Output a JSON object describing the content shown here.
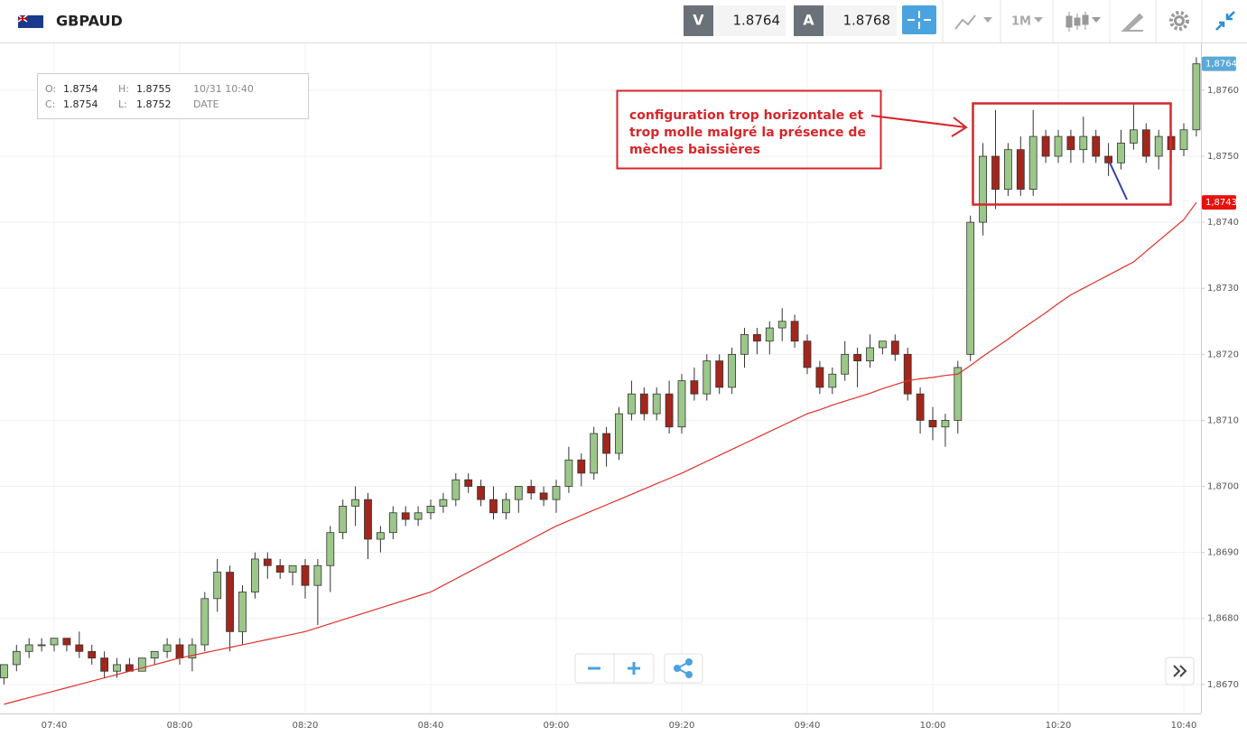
{
  "header": {
    "symbol": "GBPAUD",
    "sell_label": "V",
    "sell_price": "1.8764",
    "buy_label": "A",
    "buy_price": "1.8768",
    "timeframe": "1M"
  },
  "info_box": {
    "rows": [
      [
        "O:",
        "1.8754",
        "H:",
        "1.8755",
        "10/31 10:40"
      ],
      [
        "C:",
        "1.8754",
        "L:",
        "1.8752",
        "DATE"
      ]
    ]
  },
  "chart_data": {
    "type": "candlestick",
    "annotation": [
      "configuration trop horizontale et",
      "trop molle malgré la présence de",
      "mèches baissières"
    ],
    "categories": [
      null,
      null,
      null,
      null,
      "07:40",
      null,
      null,
      null,
      null,
      null,
      null,
      null,
      null,
      null,
      "08:00",
      null,
      null,
      null,
      null,
      null,
      null,
      null,
      null,
      null,
      "08:20",
      null,
      null,
      null,
      null,
      null,
      null,
      null,
      null,
      null,
      "08:40",
      null,
      null,
      null,
      null,
      null,
      null,
      null,
      null,
      null,
      "09:00",
      null,
      null,
      null,
      null,
      null,
      null,
      null,
      null,
      null,
      "09:20",
      null,
      null,
      null,
      null,
      null,
      null,
      null,
      null,
      null,
      "09:40",
      null,
      null,
      null,
      null,
      null,
      null,
      null,
      null,
      null,
      "10:00",
      null,
      null,
      null,
      null,
      null,
      null,
      null,
      null,
      null,
      "10:20",
      null,
      null,
      null,
      null,
      null,
      null,
      null,
      null,
      null,
      "10:40",
      null
    ],
    "ohlc": {
      "open": [
        1.8671,
        1.8673,
        1.8675,
        1.8676,
        1.8676,
        1.8677,
        1.8676,
        1.8675,
        1.8674,
        1.8672,
        1.8673,
        1.8672,
        1.8674,
        1.8675,
        1.8676,
        1.8674,
        1.8676,
        1.8683,
        1.8687,
        1.8678,
        1.8684,
        1.8689,
        1.8688,
        1.8687,
        1.8688,
        1.8685,
        1.8688,
        1.8693,
        1.8697,
        1.8698,
        1.8692,
        1.8693,
        1.8696,
        1.8695,
        1.8696,
        1.8697,
        1.8698,
        1.8701,
        1.87,
        1.8698,
        1.8696,
        1.8698,
        1.87,
        1.8699,
        1.8698,
        1.87,
        1.8704,
        1.8702,
        1.8708,
        1.8705,
        1.8711,
        1.8714,
        1.8711,
        1.8714,
        1.8709,
        1.8716,
        1.8714,
        1.8719,
        1.8715,
        1.872,
        1.8723,
        1.8722,
        1.8724,
        1.8725,
        1.8722,
        1.8718,
        1.8715,
        1.8717,
        1.872,
        1.8719,
        1.8721,
        1.8722,
        1.872,
        1.8714,
        1.871,
        1.8709,
        1.871,
        1.872,
        1.874,
        1.875,
        1.8745,
        1.8751,
        1.8745,
        1.8753,
        1.875,
        1.8753,
        1.8751,
        1.8753,
        1.875,
        1.8749,
        1.8752,
        1.8754,
        1.875,
        1.8753,
        1.8751,
        1.8754
      ],
      "high": [
        1.8673,
        1.8676,
        1.8677,
        1.8677,
        1.8677,
        1.8677,
        1.8678,
        1.8676,
        1.8675,
        1.8674,
        1.8674,
        1.8674,
        1.8675,
        1.8677,
        1.8677,
        1.8677,
        1.8684,
        1.8689,
        1.8688,
        1.8685,
        1.869,
        1.869,
        1.8689,
        1.8688,
        1.8689,
        1.8689,
        1.8694,
        1.8698,
        1.87,
        1.8699,
        1.8694,
        1.8697,
        1.8697,
        1.8697,
        1.8698,
        1.8699,
        1.8702,
        1.8702,
        1.8701,
        1.87,
        1.8699,
        1.87,
        1.8701,
        1.87,
        1.8701,
        1.8706,
        1.8705,
        1.8709,
        1.8709,
        1.8712,
        1.8716,
        1.8715,
        1.8715,
        1.8716,
        1.8717,
        1.8718,
        1.872,
        1.872,
        1.8721,
        1.8724,
        1.8724,
        1.8725,
        1.8727,
        1.8726,
        1.8723,
        1.8719,
        1.8718,
        1.8722,
        1.8721,
        1.8723,
        1.8722,
        1.8723,
        1.8721,
        1.8715,
        1.8712,
        1.8711,
        1.8719,
        1.8741,
        1.8752,
        1.8757,
        1.8752,
        1.8753,
        1.8757,
        1.8754,
        1.8754,
        1.8754,
        1.8756,
        1.8754,
        1.8752,
        1.8754,
        1.8758,
        1.8755,
        1.8754,
        1.8754,
        1.8755,
        1.8765
      ],
      "low": [
        1.867,
        1.8672,
        1.8674,
        1.8675,
        1.8675,
        1.8675,
        1.8674,
        1.8673,
        1.8671,
        1.8671,
        1.8672,
        1.8672,
        1.8673,
        1.8674,
        1.8673,
        1.8672,
        1.8675,
        1.8681,
        1.8675,
        1.8676,
        1.8683,
        1.8686,
        1.8686,
        1.8685,
        1.8683,
        1.8679,
        1.8684,
        1.8692,
        1.8694,
        1.8689,
        1.869,
        1.8692,
        1.8694,
        1.8694,
        1.8695,
        1.8696,
        1.8697,
        1.8699,
        1.8697,
        1.8695,
        1.8695,
        1.8696,
        1.8698,
        1.8697,
        1.8696,
        1.8699,
        1.87,
        1.8701,
        1.8703,
        1.8704,
        1.871,
        1.871,
        1.871,
        1.8708,
        1.8708,
        1.8713,
        1.8713,
        1.8714,
        1.8714,
        1.8718,
        1.872,
        1.872,
        1.8722,
        1.8721,
        1.8717,
        1.8714,
        1.8714,
        1.8716,
        1.8715,
        1.8718,
        1.872,
        1.8719,
        1.8713,
        1.8708,
        1.8707,
        1.8706,
        1.8708,
        1.8719,
        1.8738,
        1.8742,
        1.8744,
        1.8744,
        1.8744,
        1.8749,
        1.8749,
        1.8749,
        1.8749,
        1.8749,
        1.8747,
        1.8748,
        1.8751,
        1.8749,
        1.8748,
        1.8749,
        1.875,
        1.8753
      ],
      "close": [
        1.8673,
        1.8675,
        1.8676,
        1.8676,
        1.8677,
        1.8676,
        1.8675,
        1.8674,
        1.8672,
        1.8673,
        1.8672,
        1.8674,
        1.8675,
        1.8676,
        1.8674,
        1.8676,
        1.8683,
        1.8687,
        1.8678,
        1.8684,
        1.8689,
        1.8688,
        1.8687,
        1.8688,
        1.8685,
        1.8688,
        1.8693,
        1.8697,
        1.8698,
        1.8692,
        1.8693,
        1.8696,
        1.8695,
        1.8696,
        1.8697,
        1.8698,
        1.8701,
        1.87,
        1.8698,
        1.8696,
        1.8698,
        1.87,
        1.8699,
        1.8698,
        1.87,
        1.8704,
        1.8702,
        1.8708,
        1.8705,
        1.8711,
        1.8714,
        1.8711,
        1.8714,
        1.8709,
        1.8716,
        1.8714,
        1.8719,
        1.8715,
        1.872,
        1.8723,
        1.8722,
        1.8724,
        1.8725,
        1.8722,
        1.8718,
        1.8715,
        1.8717,
        1.872,
        1.8719,
        1.8721,
        1.8722,
        1.872,
        1.8714,
        1.871,
        1.8709,
        1.871,
        1.8718,
        1.874,
        1.875,
        1.8745,
        1.8751,
        1.8745,
        1.8753,
        1.875,
        1.8753,
        1.8751,
        1.8753,
        1.875,
        1.8749,
        1.8752,
        1.8754,
        1.875,
        1.8753,
        1.8751,
        1.8754,
        1.8764
      ]
    },
    "up_color": "#9cc78a",
    "down_color": "#a3261c",
    "ma": {
      "color": "#e0302a",
      "values": [
        1.8667,
        1.86675,
        1.8668,
        1.86685,
        1.8669,
        1.86695,
        1.867,
        1.86705,
        1.8671,
        1.86715,
        1.8672,
        1.86725,
        1.8673,
        1.86735,
        1.8674,
        1.86744,
        1.86748,
        1.86752,
        1.86756,
        1.8676,
        1.86764,
        1.86768,
        1.86772,
        1.86776,
        1.8678,
        1.86786,
        1.86792,
        1.86798,
        1.86804,
        1.8681,
        1.86816,
        1.86822,
        1.86828,
        1.86834,
        1.8684,
        1.8685,
        1.8686,
        1.8687,
        1.8688,
        1.8689,
        1.869,
        1.8691,
        1.8692,
        1.8693,
        1.8694,
        1.86948,
        1.86956,
        1.86964,
        1.86972,
        1.8698,
        1.86988,
        1.86996,
        1.87004,
        1.87012,
        1.8702,
        1.87029,
        1.87038,
        1.87047,
        1.87056,
        1.87065,
        1.87074,
        1.87083,
        1.87092,
        1.87101,
        1.8711,
        1.87116,
        1.87123,
        1.87129,
        1.87135,
        1.87141,
        1.87148,
        1.87154,
        1.8716,
        1.87163,
        1.87165,
        1.87168,
        1.8717,
        1.87183,
        1.87197,
        1.8721,
        1.87223,
        1.87237,
        1.8725,
        1.87263,
        1.87277,
        1.8729,
        1.873,
        1.8731,
        1.8732,
        1.8733,
        1.8734,
        1.87356,
        1.87372,
        1.87388,
        1.87404,
        1.8743
      ]
    },
    "price_tags": [
      {
        "value": 1.8764,
        "label": "1,8764",
        "color": "#5aa9d8"
      },
      {
        "value": 1.8743,
        "label": "1,8743",
        "color": "#e8120c"
      }
    ],
    "ylim": [
      1.86656,
      1.87671
    ],
    "yticks": [
      {
        "value": 1.867,
        "label": "1,8670"
      },
      {
        "value": 1.868,
        "label": "1,8680"
      },
      {
        "value": 1.869,
        "label": "1,8690"
      },
      {
        "value": 1.87,
        "label": "1,8700"
      },
      {
        "value": 1.871,
        "label": "1,8710"
      },
      {
        "value": 1.872,
        "label": "1,8720"
      },
      {
        "value": 1.873,
        "label": "1,8730"
      },
      {
        "value": 1.874,
        "label": "1,8740"
      },
      {
        "value": 1.875,
        "label": "1,8750"
      },
      {
        "value": 1.876,
        "label": "1,8760"
      }
    ],
    "grid": true
  }
}
